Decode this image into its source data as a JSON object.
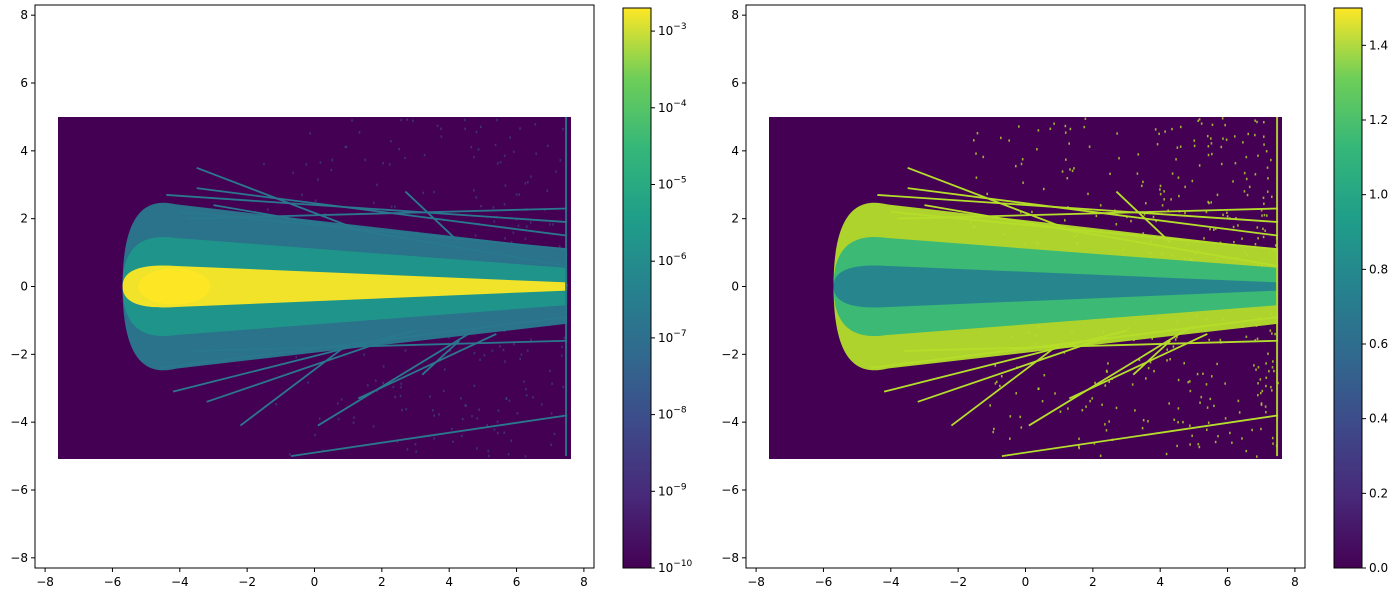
{
  "chart_data": [
    {
      "type": "heatmap",
      "title": "",
      "xlabel": "",
      "ylabel": "",
      "xlim": [
        -8.3,
        8.3
      ],
      "ylim": [
        -8.3,
        8.3
      ],
      "xticks": [
        -8,
        -6,
        -4,
        -2,
        0,
        2,
        4,
        6,
        8
      ],
      "yticks": [
        -8,
        -6,
        -4,
        -2,
        0,
        2,
        4,
        6,
        8
      ],
      "xtick_labels": [
        "−8",
        "−6",
        "−4",
        "−2",
        "0",
        "2",
        "4",
        "6",
        "8"
      ],
      "ytick_labels": [
        "−8",
        "−6",
        "−4",
        "−2",
        "0",
        "2",
        "4",
        "6",
        "8"
      ],
      "data_extent": {
        "x": [
          -7.5,
          7.5
        ],
        "y": [
          -5,
          5
        ]
      },
      "background_value_color": "#440154",
      "beam": {
        "origin_x": -4.4,
        "origin_y": 0,
        "core_color": "#fde725",
        "halo_color": "#1f968b",
        "outer_color": "#2a788e"
      },
      "streak_color": "#2a788e",
      "colorbar": {
        "scale": "log",
        "range": [
          1e-10,
          0.002
        ],
        "ticks": [
          {
            "base": "10",
            "exp": "−3",
            "value": 0.001
          },
          {
            "base": "10",
            "exp": "−4",
            "value": 0.0001
          },
          {
            "base": "10",
            "exp": "−5",
            "value": 1e-05
          },
          {
            "base": "10",
            "exp": "−6",
            "value": 1e-06
          },
          {
            "base": "10",
            "exp": "−7",
            "value": 1e-07
          },
          {
            "base": "10",
            "exp": "−8",
            "value": 1e-08
          },
          {
            "base": "10",
            "exp": "−9",
            "value": 1e-09
          },
          {
            "base": "10",
            "exp": "−10",
            "value": 1e-10
          }
        ]
      }
    },
    {
      "type": "heatmap",
      "title": "",
      "xlabel": "",
      "ylabel": "",
      "xlim": [
        -8.3,
        8.3
      ],
      "ylim": [
        -8.3,
        8.3
      ],
      "xticks": [
        -8,
        -6,
        -4,
        -2,
        0,
        2,
        4,
        6,
        8
      ],
      "yticks": [
        -8,
        -6,
        -4,
        -2,
        0,
        2,
        4,
        6,
        8
      ],
      "xtick_labels": [
        "−8",
        "−6",
        "−4",
        "−2",
        "0",
        "2",
        "4",
        "6",
        "8"
      ],
      "ytick_labels": [
        "−8",
        "−6",
        "−4",
        "−2",
        "0",
        "2",
        "4",
        "6",
        "8"
      ],
      "data_extent": {
        "x": [
          -7.5,
          7.5
        ],
        "y": [
          -5,
          5
        ]
      },
      "background_value_color": "#440154",
      "beam": {
        "origin_x": -4.4,
        "origin_y": 0,
        "core_color": "#26828e",
        "halo_color": "#35b779",
        "outer_color": "#b5de2b"
      },
      "streak_color": "#b5de2b",
      "colorbar": {
        "scale": "linear",
        "range": [
          0,
          1.5
        ],
        "ticks": [
          {
            "label": "0.0",
            "value": 0.0
          },
          {
            "label": "0.2",
            "value": 0.2
          },
          {
            "label": "0.4",
            "value": 0.4
          },
          {
            "label": "0.6",
            "value": 0.6
          },
          {
            "label": "0.8",
            "value": 0.8
          },
          {
            "label": "1.0",
            "value": 1.0
          },
          {
            "label": "1.2",
            "value": 1.2
          },
          {
            "label": "1.4",
            "value": 1.4
          }
        ]
      }
    }
  ],
  "streaks": [
    {
      "x1": -4.4,
      "y1": 2.7,
      "x2": 7.5,
      "y2": 1.9
    },
    {
      "x1": -3.5,
      "y1": 2.9,
      "x2": 7.5,
      "y2": 1.5
    },
    {
      "x1": -3.5,
      "y1": 3.5,
      "x2": 1.5,
      "y2": 1.6
    },
    {
      "x1": -4.0,
      "y1": 2.2,
      "x2": 7.5,
      "y2": 1.1
    },
    {
      "x1": 2.7,
      "y1": 2.8,
      "x2": 4.3,
      "y2": 1.3
    },
    {
      "x1": -3.0,
      "y1": 2.4,
      "x2": 7.5,
      "y2": 0.6
    },
    {
      "x1": -4.6,
      "y1": -2.4,
      "x2": 7.5,
      "y2": -0.9
    },
    {
      "x1": -4.2,
      "y1": -3.1,
      "x2": 3.0,
      "y2": -1.3
    },
    {
      "x1": -3.2,
      "y1": -3.4,
      "x2": 2.4,
      "y2": -1.5
    },
    {
      "x1": -2.2,
      "y1": -4.1,
      "x2": 1.0,
      "y2": -1.7
    },
    {
      "x1": 0.1,
      "y1": -4.1,
      "x2": 4.9,
      "y2": -1.2
    },
    {
      "x1": 1.3,
      "y1": -3.3,
      "x2": 5.4,
      "y2": -1.4
    },
    {
      "x1": 3.2,
      "y1": -2.6,
      "x2": 4.3,
      "y2": -1.6
    },
    {
      "x1": -0.7,
      "y1": -5.0,
      "x2": 7.5,
      "y2": -3.8
    },
    {
      "x1": -3.6,
      "y1": -1.9,
      "x2": 7.5,
      "y2": -1.6
    },
    {
      "x1": -3.8,
      "y1": 2.0,
      "x2": 7.5,
      "y2": 2.3
    }
  ]
}
